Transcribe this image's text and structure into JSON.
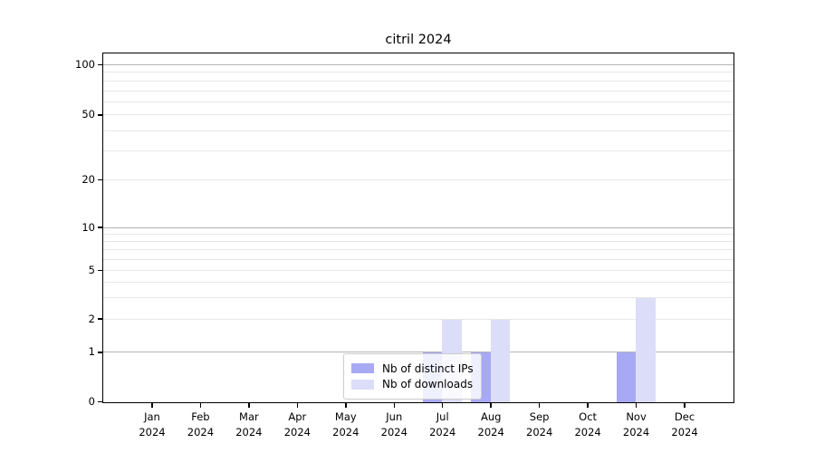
{
  "title": "citril 2024",
  "chart_data": {
    "type": "bar",
    "title": "citril 2024",
    "categories": [
      "Jan",
      "Feb",
      "Mar",
      "Apr",
      "May",
      "Jun",
      "Jul",
      "Aug",
      "Sep",
      "Oct",
      "Nov",
      "Dec"
    ],
    "category_year": "2024",
    "series": [
      {
        "name": "Nb of distinct IPs",
        "color": "#a8a9f4",
        "values": [
          0,
          0,
          0,
          0,
          0,
          0,
          1,
          1,
          0,
          0,
          1,
          0
        ]
      },
      {
        "name": "Nb of downloads",
        "color": "#dcddf9",
        "values": [
          0,
          0,
          0,
          0,
          0,
          0,
          2,
          2,
          0,
          0,
          3,
          0
        ]
      }
    ],
    "xlabel": "",
    "ylabel": "",
    "yscale": "log-like (0 at baseline)",
    "ylim": [
      0,
      115
    ],
    "yticks_labeled": [
      "0",
      "1",
      "2",
      "5",
      "10",
      "20",
      "50",
      "100"
    ],
    "y_major_gridlines": [
      1,
      10,
      100
    ],
    "y_minor_gridlines": [
      2,
      3,
      4,
      5,
      6,
      7,
      8,
      9,
      20,
      30,
      40,
      50,
      60,
      70,
      80,
      90
    ],
    "y_anchor_fractions": {
      "0": 0,
      "1": 0.1421,
      "2": 0.2377,
      "5": 0.3773,
      "10": 0.5013,
      "20": 0.6383,
      "50": 0.8243,
      "100": 0.969
    },
    "grid": "horizontal only",
    "legend_position": "bottom-center inside plot",
    "colors": {
      "distinct_ips": "#a8a9f4",
      "downloads": "#dcddf9",
      "grid_major": "#b4b4b4",
      "grid_minor": "#e7e7e7",
      "spine": "#000000",
      "legend_border": "#cccccc",
      "background": "#ffffff"
    }
  }
}
